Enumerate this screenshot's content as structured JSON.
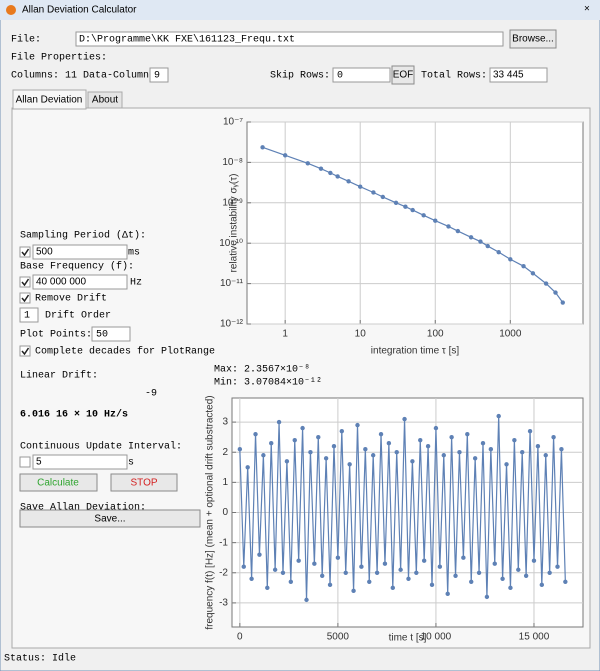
{
  "ui": {
    "window_title": "Allan Deviation Calculator",
    "file_label": "File:",
    "file_path": "D:\\Programme\\KK FXE\\161123_Frequ.txt",
    "browse": "Browse...",
    "file_properties": "File Properties:",
    "columns": "Columns: 11 Data-Column:",
    "data_column": "9",
    "skip_rows_label": "Skip Rows:",
    "skip_rows": "0",
    "eof": "EOF",
    "total_rows_label": "Total Rows:",
    "total_rows": "33 445",
    "tabs": [
      "Allan Deviation",
      "About"
    ],
    "sampling_period_label": "Sampling Period (Δt):",
    "sampling_period": "500",
    "sampling_unit": "ms",
    "base_frequency_label": "Base Frequency (f):",
    "base_frequency": "40 000 000",
    "base_frequency_unit": "Hz",
    "remove_drift": "Remove Drift",
    "drift_order": "1",
    "drift_order_label": "Drift Order",
    "plot_points_label": "Plot Points:",
    "plot_points": "50",
    "complete_decades": "Complete decades for PlotRange",
    "linear_drift_label": "Linear Drift:",
    "linear_drift_exponent": "-9",
    "linear_drift": "6.016 16 × 10 Hz/s",
    "update_interval_label": "Continuous Update Interval:",
    "update_interval": "5",
    "update_unit": "s",
    "calculate": "Calculate",
    "stop": "STOP",
    "save_label": "Save Allan Deviation:",
    "save": "Save...",
    "max": "Max: 2.3567×10⁻⁸",
    "min": "Min: 3.07084×10⁻¹²",
    "status": "Status: Idle"
  },
  "chart_data": [
    {
      "type": "line",
      "xlabel": "integration time τ [s]",
      "ylabel": "relative instability σᵧ(τ)",
      "xlog": true,
      "ylog": true,
      "grid": true,
      "xlim": [
        0.31,
        9300
      ],
      "ylim": [
        1e-12,
        1e-07
      ],
      "xticks": [
        1,
        10,
        100,
        1000
      ],
      "yticks": [
        {
          "value": 1e-12,
          "label": "10⁻¹²"
        },
        {
          "value": 1e-11,
          "label": "10⁻¹¹"
        },
        {
          "value": 1e-10,
          "label": "10⁻¹⁰"
        },
        {
          "value": 1e-09,
          "label": "10⁻⁹"
        },
        {
          "value": 1e-08,
          "label": "10⁻⁸"
        },
        {
          "value": 1e-07,
          "label": "10⁻⁷"
        }
      ],
      "x": [
        0.5,
        1,
        2,
        3,
        4,
        5,
        7,
        10,
        15,
        20,
        30,
        40,
        50,
        70,
        100,
        150,
        200,
        300,
        400,
        500,
        700,
        1000,
        1500,
        2000,
        3000,
        4000,
        5000
      ],
      "series": [
        {
          "color": "#5e81b5",
          "values": [
            2.36e-08,
            1.5e-08,
            9.5e-09,
            7e-09,
            5.5e-09,
            4.5e-09,
            3.4e-09,
            2.5e-09,
            1.8e-09,
            1.4e-09,
            1e-09,
            8e-10,
            6.6e-10,
            4.9e-10,
            3.6e-10,
            2.6e-10,
            2e-10,
            1.4e-10,
            1.1e-10,
            8.5e-11,
            6e-11,
            4e-11,
            2.7e-11,
            1.8e-11,
            1e-11,
            6e-12,
            3.4e-12
          ]
        }
      ]
    },
    {
      "type": "line",
      "xlabel": "time t [s]",
      "ylabel": "frequency f(t) [Hz] (mean + optional drift substracted)",
      "xlog": false,
      "ylog": false,
      "grid": true,
      "xlim": [
        -400,
        17500
      ],
      "ylim": [
        -3.8,
        3.8
      ],
      "xticks": [
        0,
        5000,
        {
          "value": 10000,
          "label": "10 000"
        },
        {
          "value": 15000,
          "label": "15 000"
        }
      ],
      "yticks": [
        -3,
        -2,
        -1,
        0,
        1,
        2,
        3
      ],
      "x": [
        0,
        200,
        400,
        600,
        800,
        1000,
        1200,
        1400,
        1600,
        1800,
        2000,
        2200,
        2400,
        2600,
        2800,
        3000,
        3200,
        3400,
        3600,
        3800,
        4000,
        4200,
        4400,
        4600,
        4800,
        5000,
        5200,
        5400,
        5600,
        5800,
        6000,
        6200,
        6400,
        6600,
        6800,
        7000,
        7200,
        7400,
        7600,
        7800,
        8000,
        8200,
        8400,
        8600,
        8800,
        9000,
        9200,
        9400,
        9600,
        9800,
        10000,
        10200,
        10400,
        10600,
        10800,
        11000,
        11200,
        11400,
        11600,
        11800,
        12000,
        12200,
        12400,
        12600,
        12800,
        13000,
        13200,
        13400,
        13600,
        13800,
        14000,
        14200,
        14400,
        14600,
        14800,
        15000,
        15200,
        15400,
        15600,
        15800,
        16000,
        16200,
        16400,
        16600
      ],
      "series": [
        {
          "color": "#5e81b5",
          "values": [
            2.1,
            -1.8,
            1.5,
            -2.2,
            2.6,
            -1.4,
            1.9,
            -2.5,
            2.3,
            -1.9,
            3.0,
            -2.0,
            1.7,
            -2.3,
            2.4,
            -1.6,
            2.8,
            -2.9,
            2.0,
            -1.7,
            2.5,
            -2.1,
            1.8,
            -2.4,
            2.2,
            -1.5,
            2.7,
            -2.0,
            1.6,
            -2.6,
            2.9,
            -1.8,
            2.1,
            -2.3,
            1.9,
            -2.0,
            2.6,
            -1.7,
            2.3,
            -2.5,
            2.0,
            -1.9,
            3.1,
            -2.2,
            1.7,
            -2.0,
            2.4,
            -1.6,
            2.2,
            -2.4,
            2.8,
            -1.8,
            1.9,
            -2.7,
            2.5,
            -2.1,
            2.0,
            -1.5,
            2.6,
            -2.3,
            1.8,
            -2.0,
            2.3,
            -2.8,
            2.1,
            -1.7,
            3.2,
            -2.2,
            1.6,
            -2.5,
            2.4,
            -1.9,
            2.0,
            -2.1,
            2.7,
            -1.6,
            2.2,
            -2.4,
            1.9,
            -2.0,
            2.5,
            -1.8,
            2.1,
            -2.3
          ]
        }
      ]
    }
  ]
}
